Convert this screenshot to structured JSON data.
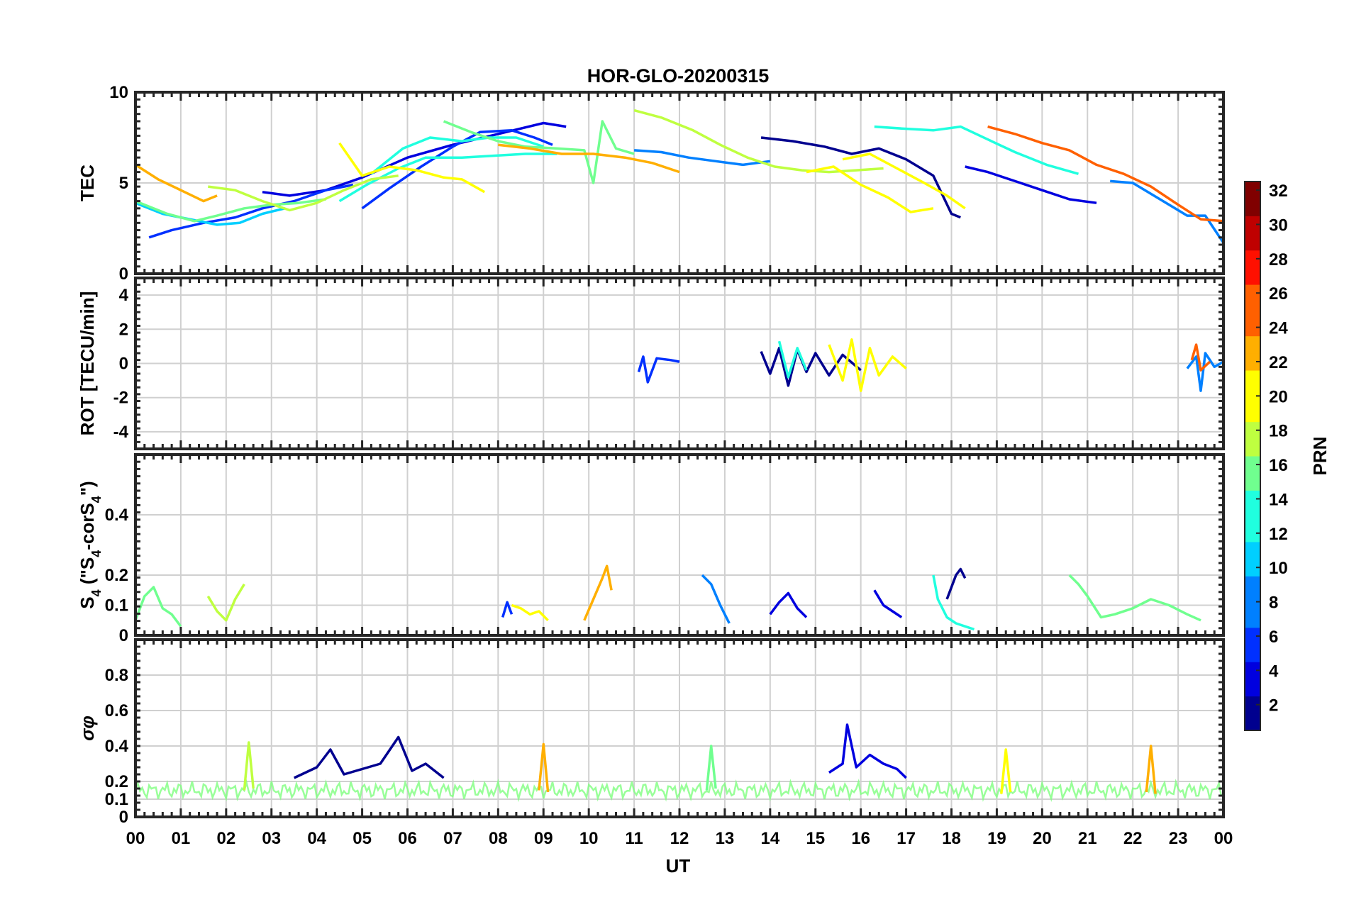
{
  "chart_data": [
    {
      "type": "line",
      "panel": "tec",
      "title": "HOR-GLO-20200315",
      "ylabel": "TEC",
      "ylim": [
        0,
        10
      ],
      "yticks": [
        "0",
        "5",
        "10"
      ],
      "series": [
        {
          "name": "PRN 3",
          "prn": 3,
          "x": [
            2.8,
            3.4,
            4.2,
            5.0,
            6.0,
            7.0,
            8.0,
            9.0,
            9.5
          ],
          "values": [
            4.5,
            4.3,
            4.6,
            5.3,
            6.4,
            7.1,
            7.7,
            8.3,
            8.1
          ]
        },
        {
          "name": "PRN 2",
          "prn": 2,
          "x": [
            13.8,
            14.5,
            15.2,
            15.8,
            16.4,
            17.0,
            17.6,
            18.0,
            18.2
          ],
          "values": [
            7.5,
            7.3,
            7.0,
            6.6,
            6.9,
            6.3,
            5.4,
            3.3,
            3.1
          ]
        },
        {
          "name": "PRN 6",
          "prn": 6,
          "x": [
            0.3,
            0.8,
            1.5,
            2.2,
            2.8,
            3.5,
            4.2,
            4.8
          ],
          "values": [
            2.0,
            2.4,
            2.8,
            3.1,
            3.6,
            4.0,
            4.6,
            4.9
          ]
        },
        {
          "name": "PRN 5",
          "prn": 5,
          "x": [
            5.0,
            5.6,
            6.3,
            7.0,
            7.6,
            8.3,
            8.8,
            9.2
          ],
          "values": [
            3.6,
            4.7,
            5.9,
            7.0,
            7.8,
            7.9,
            7.5,
            7.1
          ]
        },
        {
          "name": "PRN 7",
          "prn": 7,
          "x": [
            11.0,
            11.6,
            12.2,
            12.8,
            13.4,
            14.0
          ],
          "values": [
            6.8,
            6.7,
            6.4,
            6.2,
            6.0,
            6.2
          ]
        },
        {
          "name": "PRN 4",
          "prn": 4,
          "x": [
            18.3,
            18.8,
            19.4,
            20.0,
            20.6,
            21.2
          ],
          "values": [
            5.9,
            5.6,
            5.1,
            4.6,
            4.1,
            3.9
          ]
        },
        {
          "name": "PRN 8",
          "prn": 8,
          "x": [
            21.5,
            22.0,
            22.6,
            23.2,
            23.6,
            24.0
          ],
          "values": [
            5.1,
            5.0,
            4.1,
            3.2,
            3.2,
            1.7
          ]
        },
        {
          "name": "PRN 10",
          "prn": 10,
          "x": [
            0.0,
            0.6,
            1.2,
            1.8,
            2.3,
            2.8,
            3.3
          ],
          "values": [
            3.9,
            3.3,
            3.0,
            2.7,
            2.8,
            3.3,
            3.6
          ]
        },
        {
          "name": "PRN 13",
          "prn": 13,
          "x": [
            4.5,
            5.1,
            5.8,
            6.4,
            7.2,
            7.9,
            8.6,
            9.3
          ],
          "values": [
            4.0,
            4.9,
            5.8,
            6.4,
            6.4,
            6.5,
            6.6,
            6.6
          ]
        },
        {
          "name": "PRN 14",
          "prn": 14,
          "x": [
            16.3,
            16.9,
            17.6,
            18.2,
            18.8,
            19.4,
            20.1,
            20.8
          ],
          "values": [
            8.1,
            8.0,
            7.9,
            8.1,
            7.4,
            6.7,
            6.0,
            5.5
          ]
        },
        {
          "name": "PRN 12",
          "prn": 12,
          "x": [
            5.2,
            5.9,
            6.5,
            7.2,
            7.8,
            8.4,
            9.0
          ],
          "values": [
            5.5,
            6.9,
            7.5,
            7.3,
            7.5,
            7.5,
            7.0
          ]
        },
        {
          "name": "PRN 15",
          "prn": 15,
          "x": [
            0.0,
            0.7,
            1.3,
            1.8,
            2.4,
            3.0,
            3.6,
            4.2
          ],
          "values": [
            4.0,
            3.3,
            2.9,
            3.2,
            3.6,
            3.8,
            3.9,
            4.1
          ]
        },
        {
          "name": "PRN 16",
          "prn": 16,
          "x": [
            6.8,
            7.4,
            8.0,
            8.6,
            9.3,
            9.9,
            10.1,
            10.3,
            10.6,
            11.0
          ],
          "values": [
            8.4,
            7.8,
            7.3,
            7.0,
            6.9,
            6.8,
            5.0,
            8.4,
            6.9,
            6.6
          ]
        },
        {
          "name": "PRN 17",
          "prn": 17,
          "x": [
            11.0,
            11.6,
            12.3,
            12.9,
            13.5,
            14.1,
            14.7,
            15.3,
            15.9,
            16.5
          ],
          "values": [
            9.0,
            8.6,
            7.9,
            7.1,
            6.4,
            5.9,
            5.7,
            5.6,
            5.7,
            5.8
          ]
        },
        {
          "name": "PRN 18",
          "prn": 18,
          "x": [
            1.6,
            2.2,
            2.8,
            3.4,
            4.0,
            4.6,
            5.2,
            5.8
          ],
          "values": [
            4.8,
            4.6,
            4.0,
            3.5,
            3.9,
            4.6,
            5.2,
            5.4
          ]
        },
        {
          "name": "PRN 19",
          "prn": 19,
          "x": [
            15.6,
            16.2,
            16.8,
            17.4,
            17.9,
            18.3
          ],
          "values": [
            6.3,
            6.6,
            5.8,
            5.0,
            4.3,
            3.6
          ]
        },
        {
          "name": "PRN 20",
          "prn": 20,
          "x": [
            4.5,
            5.0,
            5.6,
            6.2,
            6.8,
            7.2,
            7.7
          ],
          "values": [
            7.2,
            5.4,
            5.9,
            5.7,
            5.3,
            5.2,
            4.5
          ]
        },
        {
          "name": "PRN 21",
          "prn": 21,
          "x": [
            14.8,
            15.4,
            16.0,
            16.6,
            17.1,
            17.6
          ],
          "values": [
            5.6,
            5.9,
            4.9,
            4.2,
            3.4,
            3.6
          ]
        },
        {
          "name": "PRN 22",
          "prn": 22,
          "x": [
            0.0,
            0.5,
            1.0,
            1.5,
            1.8
          ],
          "values": [
            6.0,
            5.2,
            4.6,
            4.0,
            4.3
          ]
        },
        {
          "name": "PRN 23",
          "prn": 23,
          "x": [
            8.0,
            8.7,
            9.4,
            10.1,
            10.8,
            11.4,
            12.0
          ],
          "values": [
            7.1,
            6.9,
            6.6,
            6.6,
            6.4,
            6.1,
            5.6
          ]
        },
        {
          "name": "PRN 24",
          "prn": 24,
          "x": [
            18.8,
            19.4,
            20.0,
            20.6,
            21.2,
            21.8,
            22.4,
            23.0,
            23.5,
            24.0
          ],
          "values": [
            8.1,
            7.7,
            7.2,
            6.8,
            6.0,
            5.5,
            4.8,
            3.8,
            3.0,
            2.9
          ]
        }
      ]
    },
    {
      "type": "line",
      "panel": "rot",
      "ylabel": "ROT [TECU/min]",
      "ylim": [
        -5,
        5
      ],
      "yticks": [
        "-4",
        "-2",
        "0",
        "2",
        "4"
      ],
      "series": [
        {
          "name": "PRN 2",
          "prn": 2,
          "x": [
            13.8,
            14.0,
            14.2,
            14.4,
            14.6,
            14.8,
            15.0,
            15.3,
            15.6,
            16.0
          ],
          "values": [
            0.7,
            -0.6,
            0.9,
            -1.3,
            0.8,
            -0.5,
            0.6,
            -0.7,
            0.5,
            -0.4
          ]
        },
        {
          "name": "PRN 5",
          "prn": 5,
          "x": [
            11.1,
            11.2,
            11.3,
            11.5,
            11.8,
            12.0
          ],
          "values": [
            -0.5,
            0.4,
            -1.1,
            0.3,
            0.2,
            0.1
          ]
        },
        {
          "name": "PRN 21",
          "prn": 21,
          "x": [
            15.3,
            15.6,
            15.8,
            16.0,
            16.2,
            16.4,
            16.7,
            17.0
          ],
          "values": [
            1.1,
            -1.0,
            1.4,
            -1.6,
            0.9,
            -0.7,
            0.4,
            -0.3
          ]
        },
        {
          "name": "PRN 12",
          "prn": 12,
          "x": [
            14.2,
            14.4,
            14.6,
            14.8
          ],
          "values": [
            1.3,
            -0.8,
            0.9,
            -0.4
          ]
        },
        {
          "name": "PRN 8",
          "prn": 8,
          "x": [
            23.2,
            23.4,
            23.5,
            23.6,
            23.8,
            24.0
          ],
          "values": [
            -0.3,
            0.4,
            -1.6,
            0.6,
            -0.2,
            0.1
          ]
        },
        {
          "name": "PRN 24",
          "prn": 24,
          "x": [
            23.3,
            23.4,
            23.5,
            23.7
          ],
          "values": [
            0.2,
            1.1,
            -0.4,
            0.1
          ]
        }
      ]
    },
    {
      "type": "line",
      "panel": "s4",
      "ylabel": "S4 (\"S4-corS4\")",
      "ylim": [
        0,
        0.6
      ],
      "yticks": [
        "0",
        "0.1",
        "0.2",
        "0.4"
      ],
      "series": [
        {
          "name": "PRN 16",
          "prn": 16,
          "x": [
            0.0,
            0.2,
            0.4,
            0.6,
            0.8,
            1.0
          ],
          "values": [
            0.05,
            0.13,
            0.16,
            0.09,
            0.07,
            0.03
          ]
        },
        {
          "name": "PRN 17",
          "prn": 17,
          "x": [
            1.6,
            1.8,
            2.0,
            2.2,
            2.4
          ],
          "values": [
            0.13,
            0.08,
            0.05,
            0.12,
            0.17
          ]
        },
        {
          "name": "PRN 22",
          "prn": 22,
          "x": [
            9.9,
            10.1,
            10.3,
            10.4,
            10.5
          ],
          "values": [
            0.05,
            0.12,
            0.19,
            0.23,
            0.15
          ]
        },
        {
          "name": "PRN 7",
          "prn": 7,
          "x": [
            12.5,
            12.7,
            12.9,
            13.0,
            13.1
          ],
          "values": [
            0.2,
            0.17,
            0.1,
            0.07,
            0.04
          ]
        },
        {
          "name": "PRN 3",
          "prn": 3,
          "x": [
            14.0,
            14.2,
            14.4,
            14.6,
            14.8
          ],
          "values": [
            0.07,
            0.11,
            0.14,
            0.09,
            0.06
          ]
        },
        {
          "name": "PRN 4",
          "prn": 4,
          "x": [
            16.3,
            16.5,
            16.7,
            16.9
          ],
          "values": [
            0.15,
            0.1,
            0.08,
            0.06
          ]
        },
        {
          "name": "PRN 2",
          "prn": 2,
          "x": [
            17.9,
            18.0,
            18.1,
            18.2,
            18.3
          ],
          "values": [
            0.12,
            0.16,
            0.2,
            0.22,
            0.19
          ]
        },
        {
          "name": "PRN 12",
          "prn": 12,
          "x": [
            17.6,
            17.7,
            17.9,
            18.1,
            18.3,
            18.5
          ],
          "values": [
            0.2,
            0.12,
            0.06,
            0.04,
            0.03,
            0.02
          ]
        },
        {
          "name": "PRN 15",
          "prn": 15,
          "x": [
            20.6,
            20.8,
            21.0,
            21.3,
            21.6,
            22.0,
            22.4,
            22.8,
            23.2,
            23.5
          ],
          "values": [
            0.2,
            0.17,
            0.13,
            0.06,
            0.07,
            0.09,
            0.12,
            0.1,
            0.07,
            0.05
          ]
        },
        {
          "name": "PRN 20",
          "prn": 20,
          "x": [
            8.3,
            8.5,
            8.7,
            8.9,
            9.1
          ],
          "values": [
            0.1,
            0.09,
            0.07,
            0.08,
            0.05
          ]
        },
        {
          "name": "PRN 6",
          "prn": 6,
          "x": [
            8.1,
            8.2,
            8.3
          ],
          "values": [
            0.06,
            0.11,
            0.07
          ]
        }
      ]
    },
    {
      "type": "line",
      "panel": "sigma_phi",
      "ylabel": "σφ",
      "xlabel": "UT",
      "ylim": [
        0,
        1
      ],
      "yticks": [
        "0",
        "0.1",
        "0.2",
        "0.4",
        "0.6",
        "0.8"
      ],
      "xticks": [
        "00",
        "01",
        "02",
        "03",
        "04",
        "05",
        "06",
        "07",
        "08",
        "09",
        "10",
        "11",
        "12",
        "13",
        "14",
        "15",
        "16",
        "17",
        "18",
        "19",
        "20",
        "21",
        "22",
        "23",
        "00"
      ],
      "xlim": [
        0,
        24
      ],
      "series": [
        {
          "name": "PRN 2",
          "prn": 2,
          "x": [
            3.5,
            4.0,
            4.3,
            4.6,
            5.0,
            5.4,
            5.8,
            6.1,
            6.4,
            6.8
          ],
          "values": [
            0.22,
            0.28,
            0.38,
            0.24,
            0.27,
            0.3,
            0.45,
            0.26,
            0.3,
            0.22
          ]
        },
        {
          "name": "PRN 3",
          "prn": 3,
          "x": [
            15.3,
            15.6,
            15.7,
            15.9,
            16.2,
            16.5,
            16.8,
            17.0
          ],
          "values": [
            0.25,
            0.3,
            0.52,
            0.28,
            0.35,
            0.3,
            0.27,
            0.22
          ]
        },
        {
          "name": "PRN 17",
          "prn": 17,
          "x": [
            2.4,
            2.5,
            2.6
          ],
          "values": [
            0.15,
            0.42,
            0.16
          ]
        },
        {
          "name": "PRN 23",
          "prn": 23,
          "x": [
            8.9,
            9.0,
            9.1
          ],
          "values": [
            0.15,
            0.41,
            0.14
          ]
        },
        {
          "name": "PRN 22",
          "prn": 22,
          "x": [
            22.3,
            22.4,
            22.5
          ],
          "values": [
            0.14,
            0.4,
            0.13
          ]
        },
        {
          "name": "PRN 16",
          "prn": 16,
          "x": [
            12.6,
            12.7,
            12.8
          ],
          "values": [
            0.15,
            0.4,
            0.16
          ]
        },
        {
          "name": "PRN 19",
          "prn": 19,
          "x": [
            19.1,
            19.2,
            19.3
          ],
          "values": [
            0.13,
            0.38,
            0.14
          ]
        }
      ],
      "baseline_band": {
        "low": 0.1,
        "high": 0.2
      }
    }
  ],
  "colorbar": {
    "label": "PRN",
    "min": 1,
    "max": 32,
    "ticks": [
      "2",
      "4",
      "6",
      "8",
      "10",
      "12",
      "14",
      "16",
      "18",
      "20",
      "22",
      "24",
      "26",
      "28",
      "30",
      "32"
    ],
    "colors": [
      "#00008f",
      "#0000df",
      "#0030ff",
      "#0080ff",
      "#00cfff",
      "#20ffdf",
      "#70ff8f",
      "#bfff40",
      "#ffff00",
      "#ffaf00",
      "#ff6000",
      "#ff1000",
      "#bf0000",
      "#800000"
    ]
  }
}
